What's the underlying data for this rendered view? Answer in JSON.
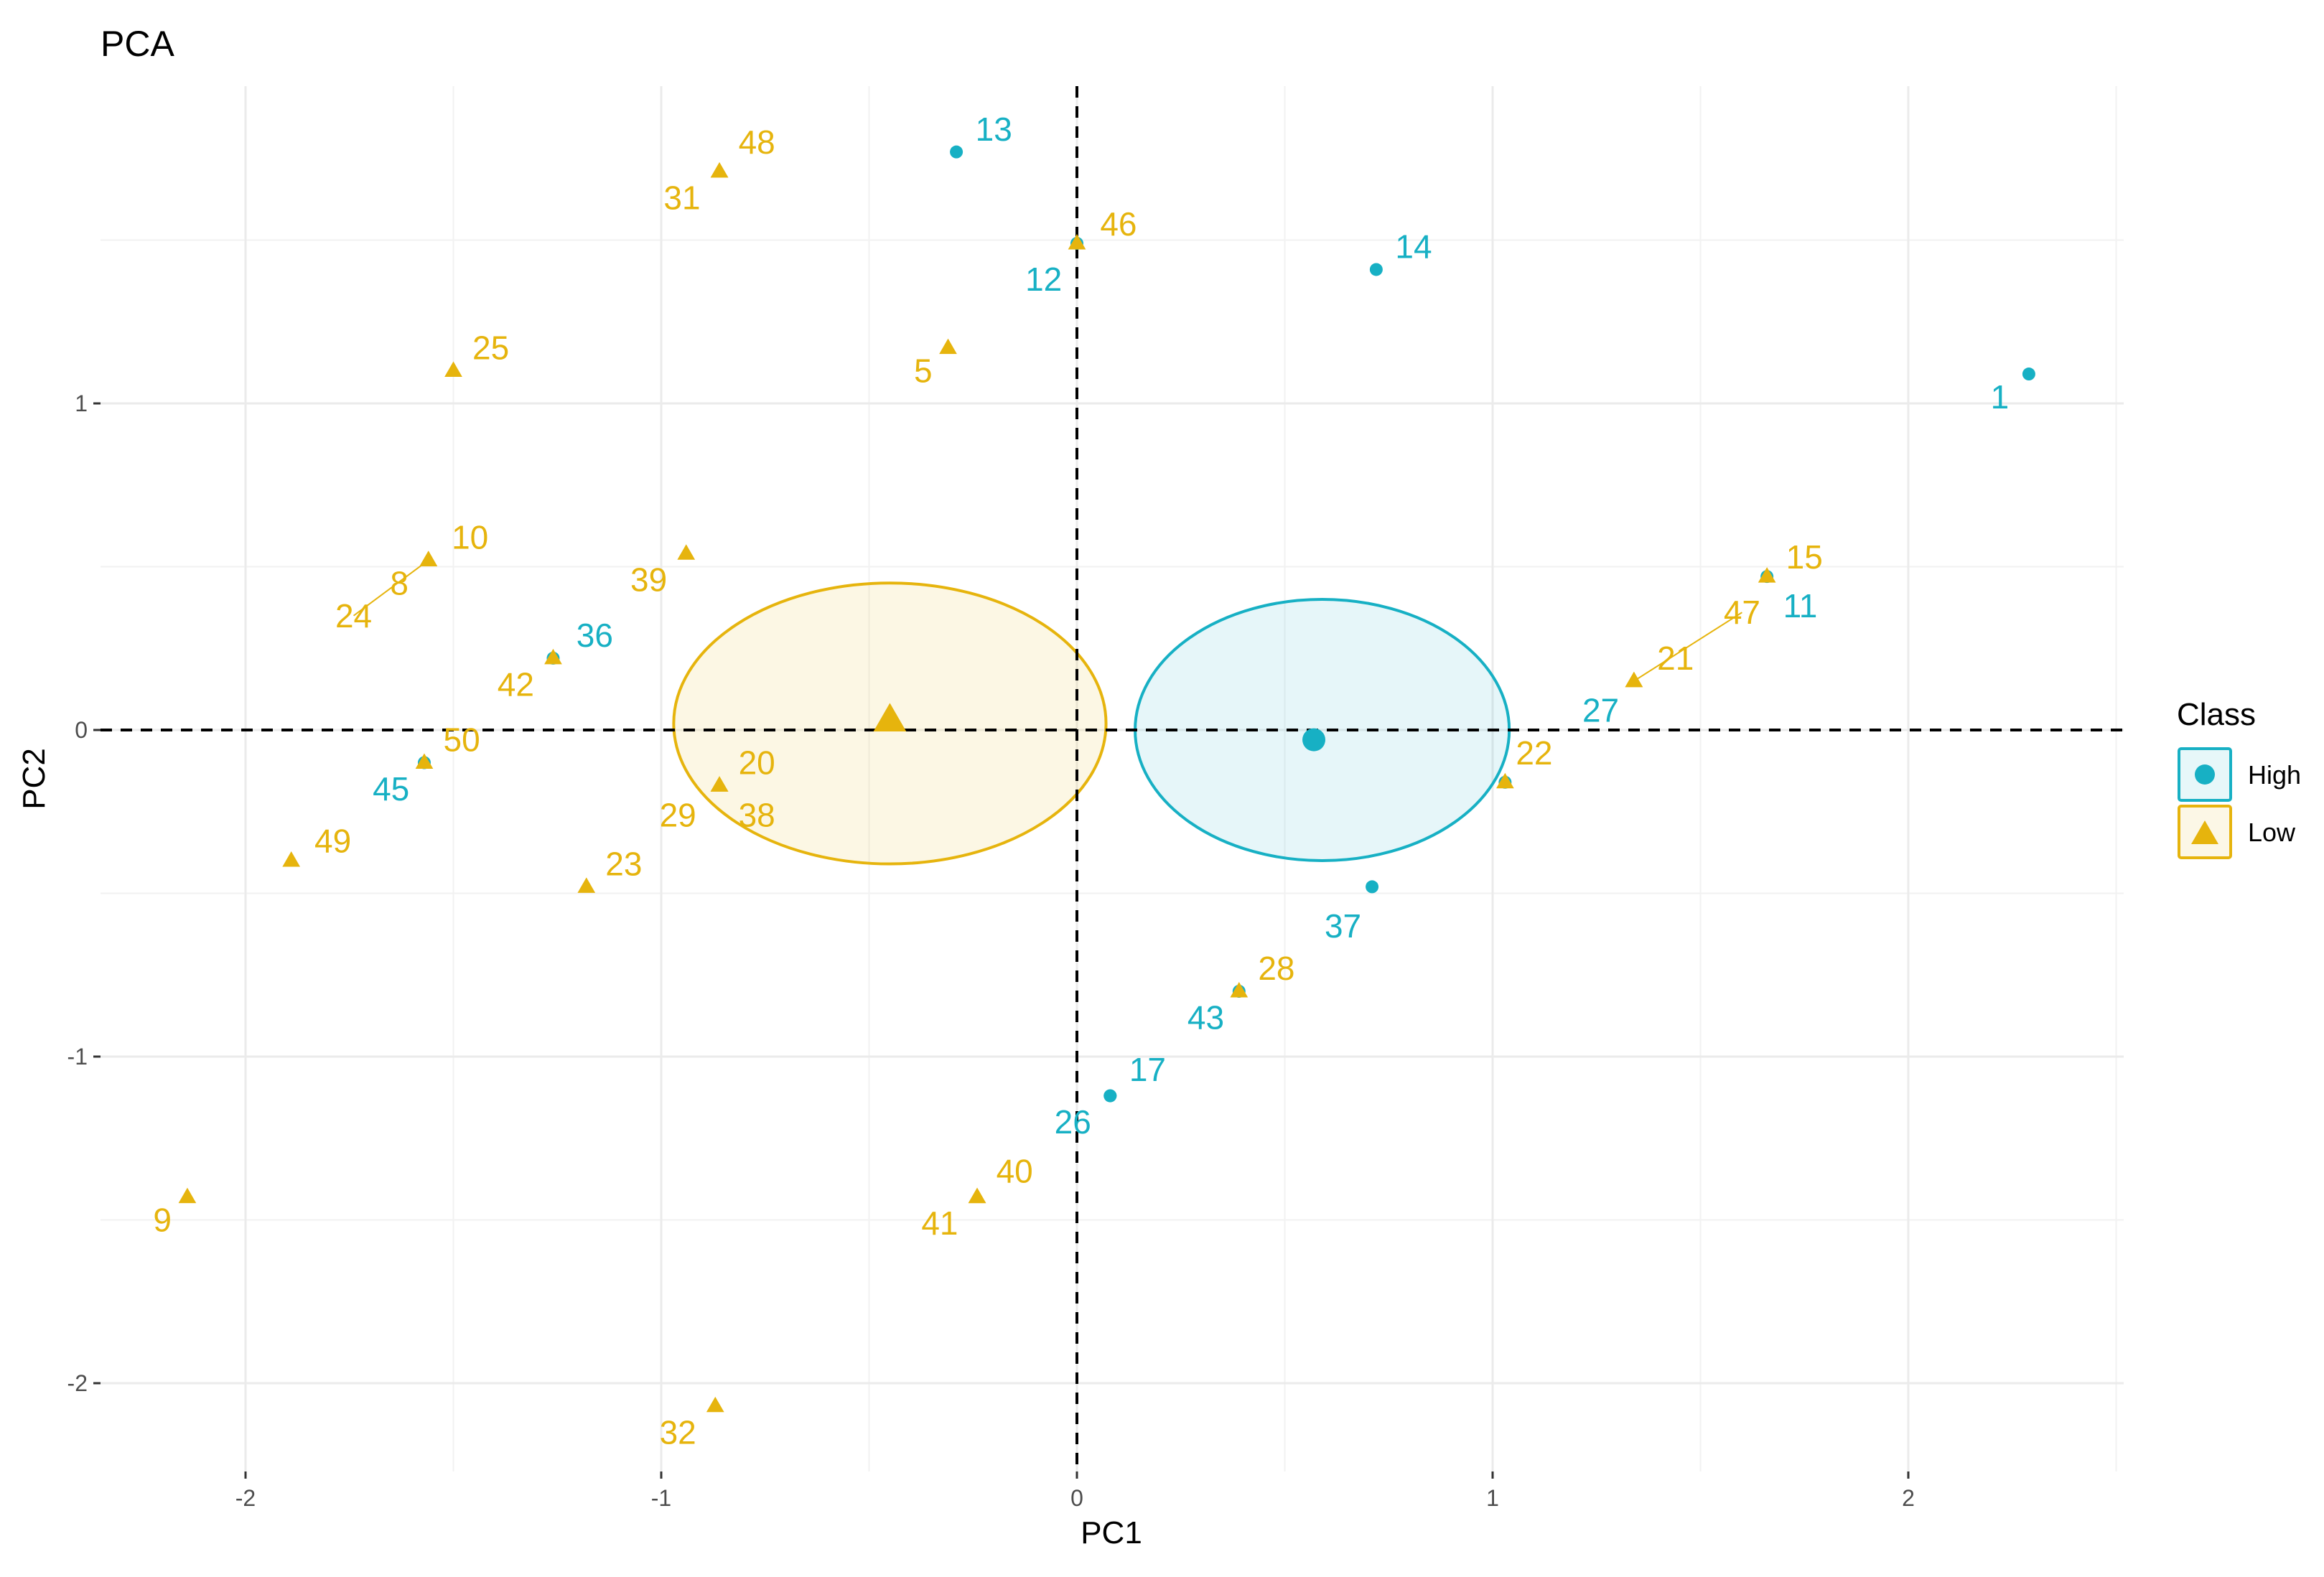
{
  "chart_data": {
    "type": "scatter",
    "title": "PCA",
    "xlabel": "PC1",
    "ylabel": "PC2",
    "xlim": [
      -2.35,
      2.52
    ],
    "ylim": [
      -2.24,
      1.97
    ],
    "x_ticks": [
      -2,
      -1,
      0,
      1,
      2
    ],
    "x_tick_labels": [
      "-2",
      "-1",
      "0",
      "1",
      "2"
    ],
    "y_ticks": [
      -2,
      -1,
      0,
      1
    ],
    "y_tick_labels": [
      "-2",
      "-1",
      "0",
      "1"
    ],
    "grid": true,
    "reference_lines": {
      "x": 0,
      "y": 0,
      "style": "dashed"
    },
    "legend": {
      "title": "Class",
      "position": "right",
      "entries": [
        {
          "label": "High",
          "color": "#17B0C4",
          "shape": "circle"
        },
        {
          "label": "Low",
          "color": "#E6B40D",
          "shape": "triangle"
        }
      ]
    },
    "series": [
      {
        "name": "High",
        "color": "#17B0C4",
        "shape": "circle",
        "centroid": [
          0.57,
          -0.03
        ],
        "ellipse": {
          "center": [
            0.59,
            0.0
          ],
          "rx": 0.45,
          "ry": 0.4
        },
        "points": [
          {
            "label": "1",
            "x": 2.29,
            "y": 1.09,
            "lx": 2.22,
            "ly": 1.02
          },
          {
            "label": "13",
            "x": -0.29,
            "y": 1.77,
            "lx": -0.2,
            "ly": 1.84
          },
          {
            "label": "14",
            "x": 0.72,
            "y": 1.41,
            "lx": 0.81,
            "ly": 1.48
          },
          {
            "label": "12",
            "x": 0.0,
            "y": 1.49,
            "lx": -0.08,
            "ly": 1.38
          },
          {
            "label": "11",
            "x": 1.66,
            "y": 0.47,
            "lx": 1.74,
            "ly": 0.38
          },
          {
            "label": "27",
            "x": 1.03,
            "y": -0.16,
            "lx": 1.26,
            "ly": 0.06
          },
          {
            "label": "36",
            "x": -1.26,
            "y": 0.22,
            "lx": -1.16,
            "ly": 0.29
          },
          {
            "label": "45",
            "x": -1.57,
            "y": -0.1,
            "lx": -1.65,
            "ly": -0.18
          },
          {
            "label": "37",
            "x": 0.71,
            "y": -0.48,
            "lx": 0.64,
            "ly": -0.6
          },
          {
            "label": "43",
            "x": 0.39,
            "y": -0.8,
            "lx": 0.31,
            "ly": -0.88
          },
          {
            "label": "17",
            "x": 0.08,
            "y": -1.12,
            "lx": 0.17,
            "ly": -1.04
          },
          {
            "label": "26",
            "x": 0.08,
            "y": -1.12,
            "lx": -0.01,
            "ly": -1.2
          }
        ]
      },
      {
        "name": "Low",
        "color": "#E6B40D",
        "shape": "triangle",
        "centroid": [
          -0.45,
          0.03
        ],
        "ellipse": {
          "center": [
            -0.45,
            0.02
          ],
          "rx": 0.52,
          "ry": 0.43
        },
        "points": [
          {
            "label": "48",
            "x": -0.86,
            "y": 1.71,
            "lx": -0.77,
            "ly": 1.8
          },
          {
            "label": "31",
            "x": -0.86,
            "y": 1.71,
            "lx": -0.95,
            "ly": 1.63
          },
          {
            "label": "46",
            "x": 0.0,
            "y": 1.49,
            "lx": 0.1,
            "ly": 1.55
          },
          {
            "label": "5",
            "x": -0.31,
            "y": 1.17,
            "lx": -0.37,
            "ly": 1.1
          },
          {
            "label": "25",
            "x": -1.5,
            "y": 1.1,
            "lx": -1.41,
            "ly": 1.17
          },
          {
            "label": "10",
            "x": -1.56,
            "y": 0.52,
            "lx": -1.46,
            "ly": 0.59
          },
          {
            "label": "8",
            "x": -1.56,
            "y": 0.52,
            "lx": -1.63,
            "ly": 0.45
          },
          {
            "label": "24",
            "x": -1.56,
            "y": 0.52,
            "lx": -1.74,
            "ly": 0.35,
            "line": true
          },
          {
            "label": "39",
            "x": -0.94,
            "y": 0.54,
            "lx": -1.03,
            "ly": 0.46
          },
          {
            "label": "15",
            "x": 1.66,
            "y": 0.47,
            "lx": 1.75,
            "ly": 0.53
          },
          {
            "label": "47",
            "x": 1.34,
            "y": 0.15,
            "lx": 1.6,
            "ly": 0.36,
            "line": true
          },
          {
            "label": "21",
            "x": 1.34,
            "y": 0.15,
            "lx": 1.44,
            "ly": 0.22
          },
          {
            "label": "42",
            "x": -1.26,
            "y": 0.22,
            "lx": -1.35,
            "ly": 0.14
          },
          {
            "label": "50",
            "x": -1.57,
            "y": -0.1,
            "lx": -1.48,
            "ly": -0.03
          },
          {
            "label": "22",
            "x": 1.03,
            "y": -0.16,
            "lx": 1.1,
            "ly": -0.07
          },
          {
            "label": "20",
            "x": -0.86,
            "y": -0.17,
            "lx": -0.77,
            "ly": -0.1
          },
          {
            "label": "29",
            "x": -0.86,
            "y": -0.17,
            "lx": -0.96,
            "ly": -0.26
          },
          {
            "label": "38",
            "x": -0.86,
            "y": -0.17,
            "lx": -0.77,
            "ly": -0.26
          },
          {
            "label": "49",
            "x": -1.89,
            "y": -0.4,
            "lx": -1.79,
            "ly": -0.34
          },
          {
            "label": "23",
            "x": -1.18,
            "y": -0.48,
            "lx": -1.09,
            "ly": -0.41
          },
          {
            "label": "28",
            "x": 0.39,
            "y": -0.8,
            "lx": 0.48,
            "ly": -0.73
          },
          {
            "label": "40",
            "x": -0.24,
            "y": -1.43,
            "lx": -0.15,
            "ly": -1.35
          },
          {
            "label": "41",
            "x": -0.24,
            "y": -1.43,
            "lx": -0.33,
            "ly": -1.51
          },
          {
            "label": "9",
            "x": -2.14,
            "y": -1.43,
            "lx": -2.2,
            "ly": -1.5
          },
          {
            "label": "32",
            "x": -0.87,
            "y": -2.07,
            "lx": -0.96,
            "ly": -2.15
          }
        ]
      }
    ]
  }
}
